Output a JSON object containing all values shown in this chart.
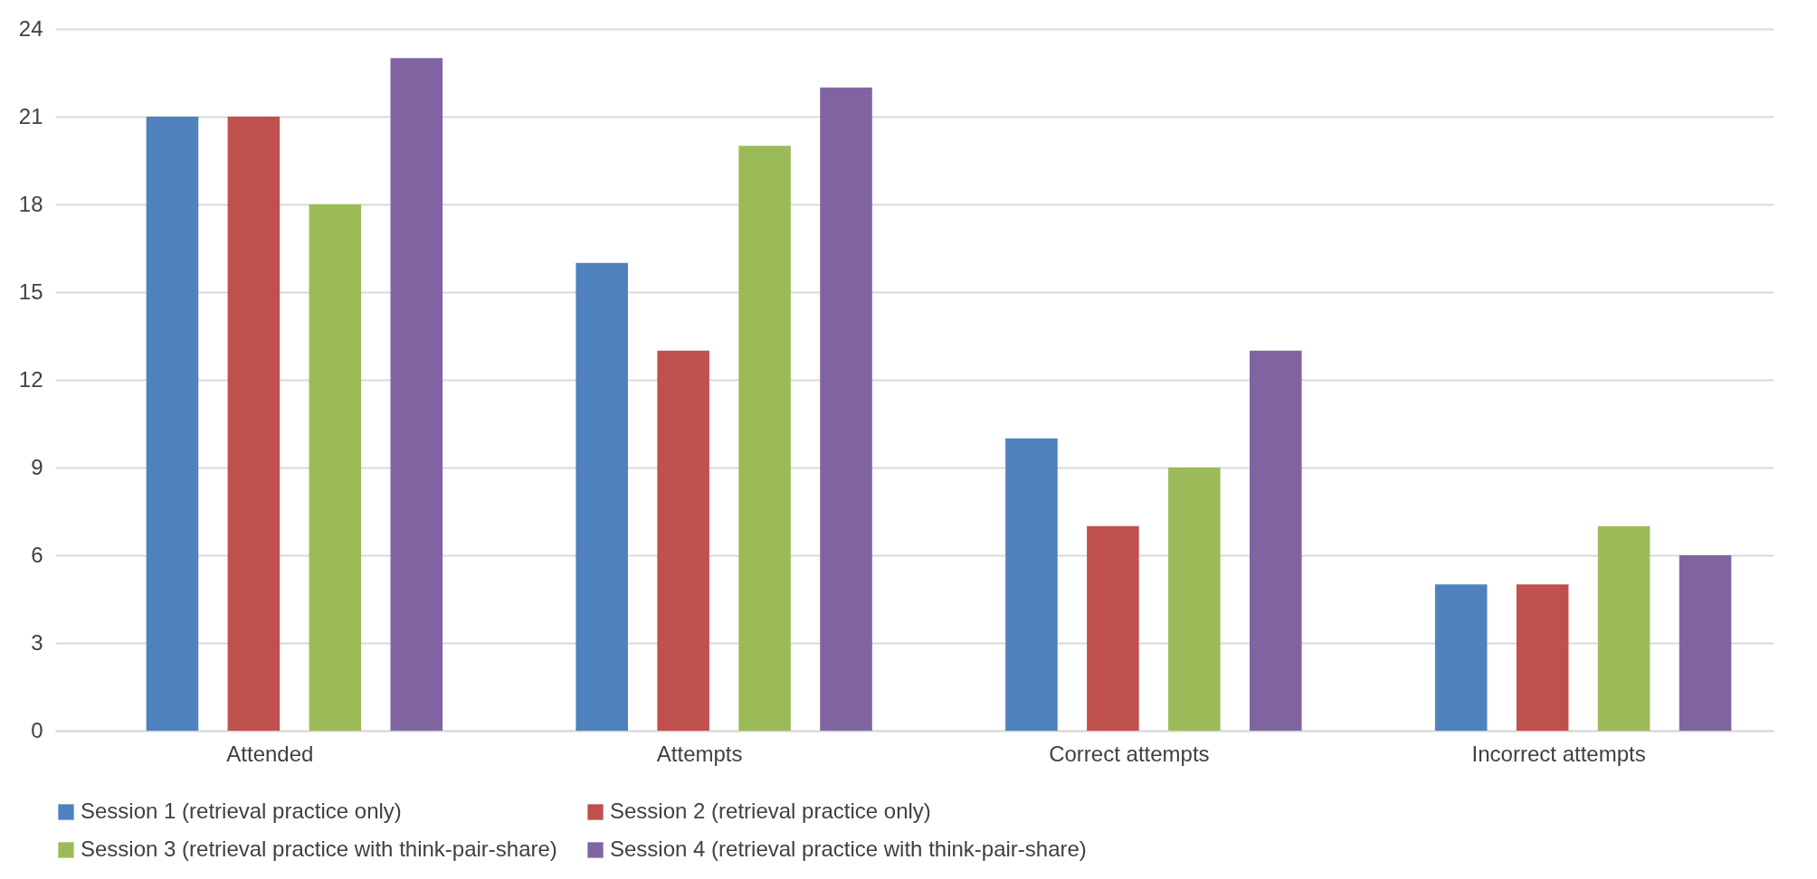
{
  "chart_data": {
    "type": "bar",
    "categories": [
      "Attended",
      "Attempts",
      "Correct attempts",
      "Incorrect attempts"
    ],
    "series": [
      {
        "name": "Session 1 (retrieval practice only)",
        "color": "#4f81bd",
        "values": [
          21,
          16,
          10,
          5
        ]
      },
      {
        "name": "Session 2 (retrieval practice only)",
        "color": "#c0504d",
        "values": [
          21,
          13,
          7,
          5
        ]
      },
      {
        "name": "Session 3 (retrieval practice with think-pair-share)",
        "color": "#9bbb59",
        "values": [
          18,
          20,
          9,
          7
        ]
      },
      {
        "name": "Session 4 (retrieval practice with think-pair-share)",
        "color": "#8064a2",
        "values": [
          23,
          22,
          13,
          6
        ]
      }
    ],
    "ylim": [
      0,
      24
    ],
    "yticks": [
      0,
      3,
      6,
      9,
      12,
      15,
      18,
      21,
      24
    ],
    "grid": "y",
    "legend": "bottom"
  }
}
